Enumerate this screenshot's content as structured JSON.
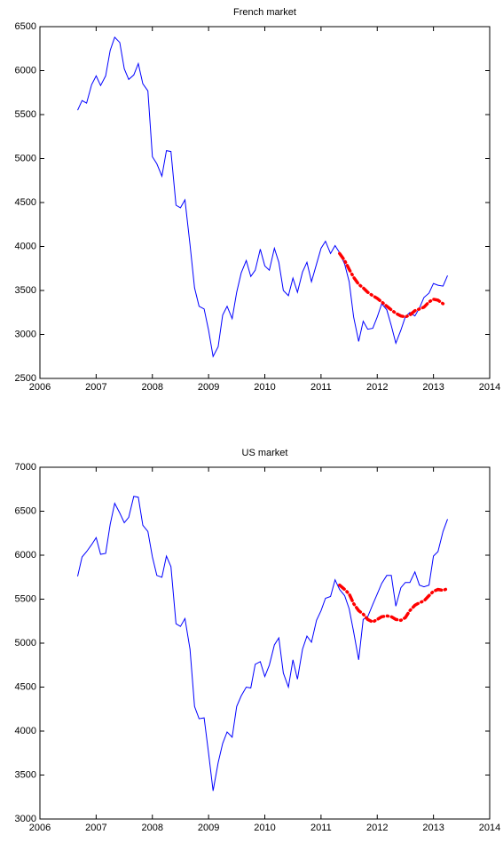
{
  "chart_data": [
    {
      "type": "line",
      "title": "French market",
      "xlim": [
        2006,
        2014
      ],
      "xticks": [
        2006,
        2007,
        2008,
        2009,
        2010,
        2011,
        2012,
        2013,
        2014
      ],
      "ylim": [
        2500,
        6500
      ],
      "yticks": [
        2500,
        3000,
        3500,
        4000,
        4500,
        5000,
        5500,
        6000,
        6500
      ],
      "series": [
        {
          "color": "#0000ff",
          "linestyle": "solid",
          "x": [
            2006.67,
            2006.75,
            2006.83,
            2006.92,
            2007.0,
            2007.08,
            2007.17,
            2007.25,
            2007.33,
            2007.42,
            2007.5,
            2007.58,
            2007.67,
            2007.75,
            2007.83,
            2007.92,
            2008.0,
            2008.08,
            2008.17,
            2008.25,
            2008.33,
            2008.42,
            2008.5,
            2008.58,
            2008.67,
            2008.75,
            2008.83,
            2008.92,
            2009.0,
            2009.08,
            2009.17,
            2009.25,
            2009.33,
            2009.42,
            2009.5,
            2009.58,
            2009.67,
            2009.75,
            2009.83,
            2009.92,
            2010.0,
            2010.08,
            2010.17,
            2010.25,
            2010.33,
            2010.42,
            2010.5,
            2010.58,
            2010.67,
            2010.75,
            2010.83,
            2010.92,
            2011.0,
            2011.08,
            2011.17,
            2011.25,
            2011.33,
            2011.42,
            2011.5,
            2011.58,
            2011.67,
            2011.75,
            2011.83,
            2011.92,
            2012.0,
            2012.08,
            2012.17,
            2012.25,
            2012.33,
            2012.42,
            2012.5,
            2012.58,
            2012.67,
            2012.75,
            2012.83,
            2012.92,
            2013.0,
            2013.08,
            2013.17,
            2013.25
          ],
          "values": [
            5550,
            5660,
            5630,
            5840,
            5940,
            5830,
            5940,
            6230,
            6380,
            6320,
            6020,
            5900,
            5950,
            6080,
            5850,
            5770,
            5020,
            4940,
            4800,
            5090,
            5080,
            4470,
            4440,
            4530,
            4020,
            3530,
            3320,
            3290,
            3050,
            2750,
            2860,
            3220,
            3320,
            3180,
            3480,
            3700,
            3840,
            3660,
            3730,
            3970,
            3780,
            3730,
            3980,
            3820,
            3500,
            3440,
            3640,
            3480,
            3710,
            3820,
            3600,
            3800,
            3980,
            4060,
            3920,
            4010,
            3930,
            3800,
            3600,
            3200,
            2920,
            3150,
            3060,
            3070,
            3200,
            3350,
            3280,
            3100,
            2900,
            3050,
            3200,
            3250,
            3210,
            3300,
            3420,
            3470,
            3580,
            3560,
            3550,
            3670
          ]
        },
        {
          "color": "#ff0000",
          "linestyle": "dashdot",
          "x": [
            2011.33,
            2011.42,
            2011.5,
            2011.58,
            2011.67,
            2011.75,
            2011.83,
            2011.92,
            2012.0,
            2012.08,
            2012.17,
            2012.25,
            2012.33,
            2012.42,
            2012.5,
            2012.58,
            2012.67,
            2012.75,
            2012.83,
            2012.92,
            2013.0,
            2013.08,
            2013.17
          ],
          "values": [
            3920,
            3840,
            3740,
            3650,
            3570,
            3530,
            3480,
            3440,
            3410,
            3370,
            3320,
            3280,
            3240,
            3210,
            3200,
            3220,
            3270,
            3290,
            3310,
            3370,
            3400,
            3390,
            3350
          ]
        }
      ]
    },
    {
      "type": "line",
      "title": "US market",
      "xlim": [
        2006,
        2014
      ],
      "xticks": [
        2006,
        2007,
        2008,
        2009,
        2010,
        2011,
        2012,
        2013,
        2014
      ],
      "ylim": [
        3000,
        7000
      ],
      "yticks": [
        3000,
        3500,
        4000,
        4500,
        5000,
        5500,
        6000,
        6500,
        7000
      ],
      "series": [
        {
          "color": "#0000ff",
          "linestyle": "solid",
          "x": [
            2006.67,
            2006.75,
            2006.83,
            2006.92,
            2007.0,
            2007.08,
            2007.17,
            2007.25,
            2007.33,
            2007.42,
            2007.5,
            2007.58,
            2007.67,
            2007.75,
            2007.83,
            2007.92,
            2008.0,
            2008.08,
            2008.17,
            2008.25,
            2008.33,
            2008.42,
            2008.5,
            2008.58,
            2008.67,
            2008.75,
            2008.83,
            2008.92,
            2009.0,
            2009.08,
            2009.17,
            2009.25,
            2009.33,
            2009.42,
            2009.5,
            2009.58,
            2009.67,
            2009.75,
            2009.83,
            2009.92,
            2010.0,
            2010.08,
            2010.17,
            2010.25,
            2010.33,
            2010.42,
            2010.5,
            2010.58,
            2010.67,
            2010.75,
            2010.83,
            2010.92,
            2011.0,
            2011.08,
            2011.17,
            2011.25,
            2011.33,
            2011.42,
            2011.5,
            2011.58,
            2011.67,
            2011.75,
            2011.83,
            2011.92,
            2012.0,
            2012.08,
            2012.17,
            2012.25,
            2012.33,
            2012.42,
            2012.5,
            2012.58,
            2012.67,
            2012.75,
            2012.83,
            2012.92,
            2013.0,
            2013.08,
            2013.17,
            2013.25
          ],
          "values": [
            5760,
            5980,
            6040,
            6120,
            6200,
            6010,
            6020,
            6350,
            6590,
            6480,
            6370,
            6430,
            6670,
            6660,
            6340,
            6270,
            5980,
            5770,
            5750,
            5990,
            5870,
            5220,
            5190,
            5280,
            4930,
            4280,
            4140,
            4150,
            3750,
            3320,
            3640,
            3860,
            3990,
            3930,
            4280,
            4400,
            4500,
            4490,
            4760,
            4790,
            4620,
            4750,
            4980,
            5060,
            4660,
            4500,
            4810,
            4590,
            4930,
            5080,
            5010,
            5260,
            5370,
            5510,
            5530,
            5720,
            5610,
            5540,
            5390,
            5130,
            4810,
            5270,
            5300,
            5440,
            5560,
            5680,
            5770,
            5770,
            5420,
            5630,
            5690,
            5690,
            5810,
            5660,
            5640,
            5660,
            5990,
            6040,
            6270,
            6410
          ]
        },
        {
          "color": "#ff0000",
          "linestyle": "dashdot",
          "x": [
            2011.33,
            2011.42,
            2011.5,
            2011.58,
            2011.67,
            2011.75,
            2011.83,
            2011.92,
            2012.0,
            2012.08,
            2012.17,
            2012.25,
            2012.33,
            2012.42,
            2012.5,
            2012.58,
            2012.67,
            2012.75,
            2012.83,
            2012.92,
            2013.0,
            2013.08,
            2013.17,
            2013.25
          ],
          "values": [
            5660,
            5610,
            5560,
            5450,
            5370,
            5330,
            5270,
            5240,
            5270,
            5300,
            5310,
            5300,
            5270,
            5260,
            5290,
            5370,
            5430,
            5460,
            5480,
            5540,
            5590,
            5610,
            5600,
            5620
          ]
        }
      ]
    }
  ]
}
